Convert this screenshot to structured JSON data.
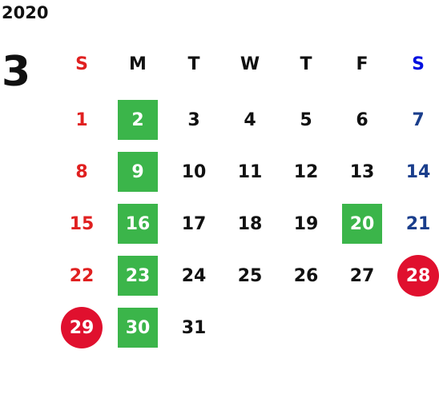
{
  "year": "2020",
  "month": "3",
  "weekdays": [
    "S",
    "M",
    "T",
    "W",
    "T",
    "F",
    "S"
  ],
  "weeks": [
    [
      {
        "day": 1
      },
      {
        "day": 2,
        "highlight": "green"
      },
      {
        "day": 3
      },
      {
        "day": 4
      },
      {
        "day": 5
      },
      {
        "day": 6
      },
      {
        "day": 7
      }
    ],
    [
      {
        "day": 8
      },
      {
        "day": 9,
        "highlight": "green"
      },
      {
        "day": 10
      },
      {
        "day": 11
      },
      {
        "day": 12
      },
      {
        "day": 13
      },
      {
        "day": 14
      }
    ],
    [
      {
        "day": 15
      },
      {
        "day": 16,
        "highlight": "green"
      },
      {
        "day": 17
      },
      {
        "day": 18
      },
      {
        "day": 19
      },
      {
        "day": 20,
        "highlight": "green"
      },
      {
        "day": 21
      }
    ],
    [
      {
        "day": 22
      },
      {
        "day": 23,
        "highlight": "green"
      },
      {
        "day": 24
      },
      {
        "day": 25
      },
      {
        "day": 26
      },
      {
        "day": 27
      },
      {
        "day": 28,
        "highlight": "red"
      }
    ],
    [
      {
        "day": 29,
        "highlight": "red"
      },
      {
        "day": 30,
        "highlight": "green"
      },
      {
        "day": 31
      },
      null,
      null,
      null,
      null
    ]
  ]
}
